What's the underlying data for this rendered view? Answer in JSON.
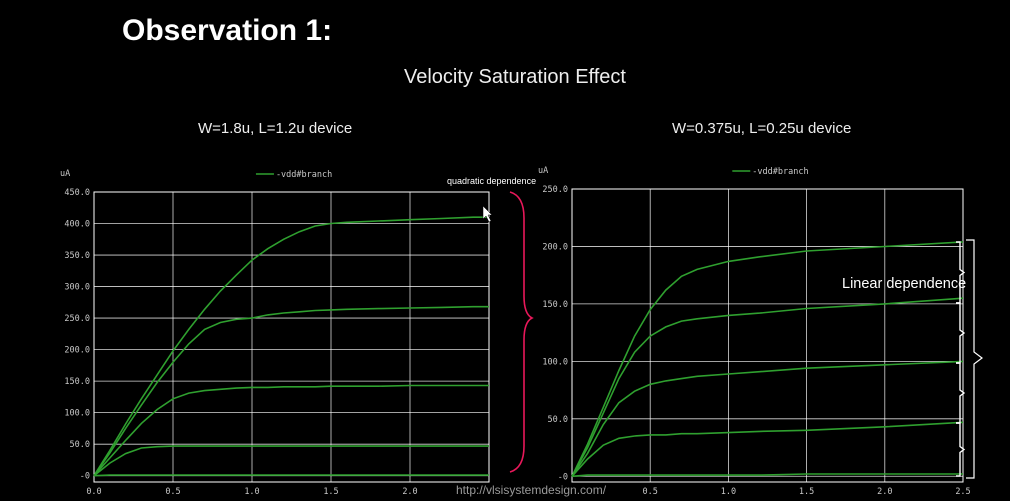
{
  "slide": {
    "title": "Observation 1:",
    "subtitle": "Velocity Saturation Effect",
    "footer_url": "http://vlsisystemdesign.com/"
  },
  "annotations": {
    "quadratic": "quadratic dependence",
    "linear": "Linear dependence",
    "brace_color": "#e8185a",
    "linear_brace_color": "#ffffff"
  },
  "colors": {
    "background": "#000000",
    "grid": "#ffffff",
    "axis_text": "#c8c8c8",
    "series": "#2fa02f"
  },
  "chart_data": [
    {
      "type": "line",
      "title": "W=1.8u, L=1.2u device",
      "ylabel": "uA",
      "legend": "-vdd#branch",
      "legend_position": "top-center",
      "grid": true,
      "xlim": [
        0,
        2.5
      ],
      "ylim": [
        -10,
        450
      ],
      "x_ticks": [
        "0.0",
        "0.5",
        "1.0",
        "1.5",
        "2.0"
      ],
      "y_ticks": [
        "-0",
        "50.0",
        "100.0",
        "150.0",
        "200.0",
        "250.0",
        "300.0",
        "350.0",
        "400.0",
        "450.0"
      ],
      "x": [
        0,
        0.1,
        0.2,
        0.3,
        0.4,
        0.5,
        0.6,
        0.7,
        0.8,
        0.9,
        1.0,
        1.1,
        1.2,
        1.3,
        1.4,
        1.5,
        1.6,
        1.8,
        2.0,
        2.2,
        2.4,
        2.5
      ],
      "series": [
        {
          "values": [
            0,
            40,
            82,
            122,
            160,
            198,
            232,
            264,
            293,
            318,
            342,
            360,
            375,
            387,
            396,
            400,
            402,
            404,
            406,
            408,
            410,
            410
          ]
        },
        {
          "values": [
            0,
            36,
            75,
            112,
            148,
            180,
            209,
            232,
            243,
            248,
            250,
            255,
            258,
            260,
            262,
            263,
            264,
            265,
            266,
            267,
            268,
            268
          ]
        },
        {
          "values": [
            0,
            28,
            56,
            83,
            105,
            122,
            131,
            135,
            137,
            139,
            140,
            140,
            141,
            141,
            141,
            142,
            142,
            142,
            143,
            143,
            143,
            143
          ]
        },
        {
          "values": [
            0,
            20,
            35,
            44,
            46,
            47,
            47,
            47,
            47,
            47,
            47,
            47,
            47,
            47,
            47,
            47,
            47,
            47,
            47,
            47,
            47,
            47
          ]
        },
        {
          "values": [
            0,
            1,
            1,
            1,
            1,
            1,
            1,
            1,
            1,
            1,
            1,
            1,
            1,
            1,
            1,
            1,
            1,
            1,
            1,
            1,
            1,
            1
          ]
        }
      ]
    },
    {
      "type": "line",
      "title": "W=0.375u, L=0.25u device",
      "ylabel": "uA",
      "legend": "-vdd#branch",
      "legend_position": "top-center",
      "grid": true,
      "xlim": [
        0,
        2.5
      ],
      "ylim": [
        -5,
        250
      ],
      "x_ticks": [
        "0.5",
        "1.0",
        "1.5",
        "2.0",
        "2.5"
      ],
      "y_ticks": [
        "-0",
        "50.0",
        "100.0",
        "150.0",
        "200.0",
        "250.0"
      ],
      "x": [
        0,
        0.1,
        0.2,
        0.3,
        0.4,
        0.5,
        0.6,
        0.7,
        0.8,
        1.0,
        1.2,
        1.5,
        2.0,
        2.5
      ],
      "series": [
        {
          "values": [
            0,
            28,
            60,
            92,
            122,
            145,
            162,
            174,
            180,
            187,
            191,
            196,
            200,
            204
          ]
        },
        {
          "values": [
            0,
            25,
            55,
            85,
            108,
            122,
            130,
            135,
            137,
            140,
            142,
            146,
            150,
            155
          ]
        },
        {
          "values": [
            0,
            20,
            45,
            64,
            74,
            80,
            83,
            85,
            87,
            89,
            91,
            94,
            97,
            100
          ]
        },
        {
          "values": [
            0,
            15,
            27,
            33,
            35,
            36,
            36,
            37,
            37,
            38,
            39,
            40,
            43,
            47
          ]
        },
        {
          "values": [
            0,
            1,
            1,
            1,
            1,
            1,
            1,
            1,
            1,
            1,
            1,
            2,
            2,
            2
          ]
        }
      ]
    }
  ]
}
